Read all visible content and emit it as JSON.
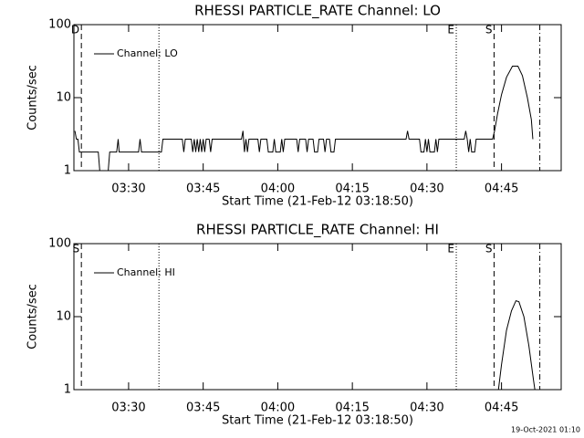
{
  "chart_data": [
    {
      "type": "line",
      "title": "RHESSI PARTICLE_RATE Channel: LO",
      "xlabel": "Start Time (21-Feb-12 03:18:50)",
      "ylabel": "Counts/sec",
      "log_y": true,
      "legend": "upper left",
      "xlim": [
        199,
        297
      ],
      "ylim": [
        1,
        100
      ],
      "yticks": [
        1,
        10,
        100
      ],
      "xticks": [
        {
          "value": 210,
          "label": "03:30"
        },
        {
          "value": 225,
          "label": "03:45"
        },
        {
          "value": 240,
          "label": "04:00"
        },
        {
          "value": 255,
          "label": "04:15"
        },
        {
          "value": 270,
          "label": "04:30"
        },
        {
          "value": 285,
          "label": "04:45"
        }
      ],
      "markers": [
        {
          "x": 200.5,
          "label": "D",
          "style": "dashed"
        },
        {
          "x": 216.1,
          "style": "dotted"
        },
        {
          "x": 275.9,
          "label": "E",
          "style": "dotted"
        },
        {
          "x": 283.5,
          "label": "S",
          "style": "dashed"
        },
        {
          "x": 292.7,
          "style": "dashdot"
        }
      ],
      "x": [
        199.2,
        199.5,
        199.8,
        200.1,
        203.9,
        204.2,
        205.9,
        206.2,
        207.6,
        207.9,
        208.1,
        212.0,
        212.3,
        212.6,
        216.6,
        216.9,
        220.8,
        221.1,
        221.4,
        222.6,
        222.9,
        223.2,
        223.5,
        223.8,
        224.1,
        224.4,
        224.7,
        225.0,
        225.3,
        225.6,
        226.2,
        226.5,
        226.8,
        232.7,
        233.0,
        233.3,
        233.6,
        233.9,
        234.2,
        236.0,
        236.3,
        236.6,
        237.8,
        238.1,
        239.0,
        239.3,
        239.6,
        240.5,
        240.8,
        241.1,
        241.4,
        243.8,
        244.1,
        244.4,
        245.6,
        245.9,
        246.2,
        247.1,
        247.4,
        248.0,
        248.3,
        249.2,
        249.5,
        249.8,
        250.4,
        250.7,
        251.3,
        251.6,
        265.8,
        266.1,
        266.4,
        268.5,
        268.8,
        269.4,
        269.7,
        270.0,
        270.3,
        270.6,
        271.5,
        271.8,
        272.1,
        272.4,
        277.5,
        277.8,
        278.1,
        278.4,
        278.7,
        279.0,
        279.6,
        279.9,
        283.2,
        283.6,
        284.2,
        285.0,
        286.0,
        287.2,
        288.3,
        289.2,
        290.2,
        291.0,
        291.3
      ],
      "series": [
        {
          "name": "Channel: LO",
          "color": "#000000",
          "values": [
            3.5,
            2.7,
            2.7,
            1.8,
            1.8,
            1.0,
            1.0,
            1.8,
            1.8,
            2.7,
            1.8,
            1.8,
            2.7,
            1.8,
            1.8,
            2.7,
            2.7,
            1.8,
            2.7,
            2.7,
            1.8,
            2.7,
            1.8,
            2.7,
            1.8,
            2.7,
            1.8,
            2.7,
            1.8,
            2.7,
            2.7,
            1.8,
            2.7,
            2.7,
            3.5,
            1.8,
            2.7,
            1.8,
            2.7,
            2.7,
            1.8,
            2.7,
            2.7,
            1.8,
            1.8,
            2.7,
            1.8,
            1.8,
            2.7,
            1.8,
            2.7,
            2.7,
            1.8,
            2.7,
            2.7,
            1.8,
            2.7,
            2.7,
            1.8,
            1.8,
            2.7,
            2.7,
            1.8,
            2.7,
            2.7,
            1.8,
            1.8,
            2.7,
            2.7,
            3.5,
            2.7,
            2.7,
            1.8,
            1.8,
            2.7,
            1.8,
            2.7,
            1.8,
            1.8,
            2.7,
            1.8,
            2.7,
            2.7,
            3.5,
            2.7,
            1.8,
            2.7,
            1.8,
            1.8,
            2.7,
            2.7,
            3.5,
            6,
            11,
            19,
            27,
            27,
            20,
            10,
            5,
            2.7
          ]
        }
      ]
    },
    {
      "type": "line",
      "title": "RHESSI PARTICLE_RATE Channel: HI",
      "xlabel": "Start Time (21-Feb-12 03:18:50)",
      "ylabel": "Counts/sec",
      "log_y": true,
      "legend": "upper left",
      "xlim": [
        199,
        297
      ],
      "ylim": [
        1,
        100
      ],
      "yticks": [
        1,
        10,
        100
      ],
      "xticks": [
        {
          "value": 210,
          "label": "03:30"
        },
        {
          "value": 225,
          "label": "03:45"
        },
        {
          "value": 240,
          "label": "04:00"
        },
        {
          "value": 255,
          "label": "04:15"
        },
        {
          "value": 270,
          "label": "04:30"
        },
        {
          "value": 285,
          "label": "04:45"
        }
      ],
      "markers": [
        {
          "x": 200.5,
          "label": "S",
          "style": "dashed"
        },
        {
          "x": 216.1,
          "style": "dotted"
        },
        {
          "x": 275.9,
          "label": "E",
          "style": "dotted"
        },
        {
          "x": 283.5,
          "label": "S",
          "style": "dashed"
        },
        {
          "x": 292.7,
          "style": "dashdot"
        }
      ],
      "x": [
        284.3,
        285.0,
        286.0,
        287.0,
        287.9,
        288.5,
        289.5,
        290.5,
        291.4,
        291.8
      ],
      "series": [
        {
          "name": "Channel: HI",
          "color": "#000000",
          "values": [
            0.9,
            2.2,
            6.5,
            12,
            16.5,
            16,
            10,
            4,
            1.4,
            0.9
          ]
        }
      ]
    }
  ],
  "footer": "19-Oct-2021 01:10"
}
